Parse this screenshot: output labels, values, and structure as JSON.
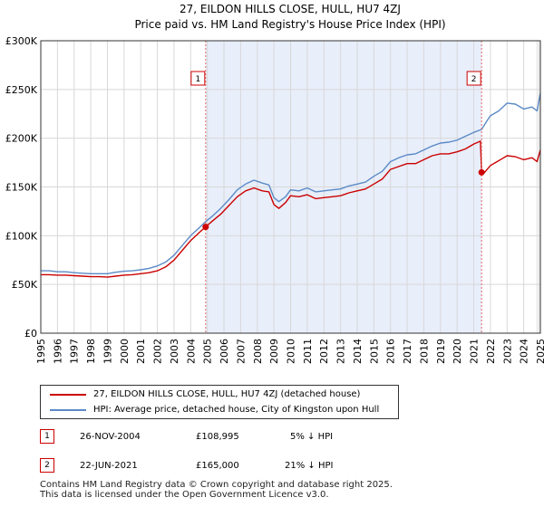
{
  "chart_data": {
    "type": "line",
    "title": "27, EILDON HILLS CLOSE, HULL, HU7 4ZJ",
    "subtitle": "Price paid vs. HM Land Registry's House Price Index (HPI)",
    "x_ticks": [
      "1995",
      "1996",
      "1997",
      "1998",
      "1999",
      "2000",
      "2001",
      "2002",
      "2003",
      "2004",
      "2005",
      "2006",
      "2007",
      "2008",
      "2009",
      "2010",
      "2011",
      "2012",
      "2013",
      "2014",
      "2015",
      "2016",
      "2017",
      "2018",
      "2019",
      "2020",
      "2021",
      "2022",
      "2023",
      "2024",
      "2025"
    ],
    "y_ticks": [
      "£0",
      "£50K",
      "£100K",
      "£150K",
      "£200K",
      "£250K",
      "£300K"
    ],
    "xlim": [
      1995,
      2025
    ],
    "ylim": [
      0,
      300000
    ],
    "grid": true,
    "shaded_period": [
      2004.9,
      2021.47
    ],
    "series": [
      {
        "name": "27, EILDON HILLS CLOSE, HULL, HU7 4ZJ (detached house)",
        "color": "#cc0000",
        "x": [
          1995.0,
          1995.5,
          1996.0,
          1996.5,
          1997.0,
          1997.5,
          1998.0,
          1998.5,
          1999.0,
          1999.5,
          2000.0,
          2000.5,
          2001.0,
          2001.5,
          2002.0,
          2002.5,
          2003.0,
          2003.5,
          2004.0,
          2004.5,
          2004.9,
          2005.3,
          2005.8,
          2006.3,
          2006.8,
          2007.3,
          2007.8,
          2008.3,
          2008.7,
          2009.0,
          2009.3,
          2009.7,
          2010.0,
          2010.5,
          2011.0,
          2011.5,
          2012.0,
          2012.5,
          2013.0,
          2013.5,
          2014.0,
          2014.5,
          2015.0,
          2015.5,
          2016.0,
          2016.5,
          2017.0,
          2017.5,
          2018.0,
          2018.5,
          2019.0,
          2019.5,
          2020.0,
          2020.5,
          2021.0,
          2021.4,
          2021.47,
          2021.6,
          2022.0,
          2022.3,
          2022.7,
          2023.0,
          2023.5,
          2024.0,
          2024.5,
          2024.8,
          2025.0
        ],
        "y": [
          60000,
          60000,
          59500,
          59500,
          59000,
          58500,
          58000,
          58000,
          57500,
          58500,
          59500,
          60000,
          61000,
          62000,
          64000,
          68000,
          75000,
          85000,
          95000,
          103000,
          108995,
          115000,
          122000,
          131000,
          140000,
          146000,
          149000,
          146000,
          145000,
          132000,
          128000,
          134000,
          141000,
          140000,
          142000,
          138000,
          139000,
          140000,
          141000,
          144000,
          146000,
          148000,
          153000,
          158000,
          168000,
          171000,
          174000,
          174000,
          178000,
          182000,
          184000,
          184000,
          186000,
          189000,
          194000,
          197000,
          165000,
          164000,
          172000,
          175000,
          179000,
          182000,
          181000,
          178000,
          180000,
          176000,
          188000
        ]
      },
      {
        "name": "HPI: Average price, detached house, City of Kingston upon Hull",
        "color": "#5b8ac6",
        "x": [
          1995.0,
          1995.5,
          1996.0,
          1996.5,
          1997.0,
          1997.5,
          1998.0,
          1998.5,
          1999.0,
          1999.5,
          2000.0,
          2000.5,
          2001.0,
          2001.5,
          2002.0,
          2002.5,
          2003.0,
          2003.5,
          2004.0,
          2004.5,
          2004.9,
          2005.3,
          2005.8,
          2006.3,
          2006.8,
          2007.3,
          2007.8,
          2008.3,
          2008.7,
          2009.0,
          2009.3,
          2009.7,
          2010.0,
          2010.5,
          2011.0,
          2011.5,
          2012.0,
          2012.5,
          2013.0,
          2013.5,
          2014.0,
          2014.5,
          2015.0,
          2015.5,
          2016.0,
          2016.5,
          2017.0,
          2017.5,
          2018.0,
          2018.5,
          2019.0,
          2019.5,
          2020.0,
          2020.5,
          2021.0,
          2021.47,
          2021.8,
          2022.0,
          2022.5,
          2023.0,
          2023.5,
          2024.0,
          2024.5,
          2024.8,
          2025.0
        ],
        "y": [
          64000,
          64000,
          63000,
          63000,
          62000,
          61500,
          61000,
          61000,
          61000,
          62500,
          63500,
          64000,
          65000,
          66500,
          69000,
          73000,
          80000,
          90000,
          100000,
          108000,
          114500,
          120000,
          128000,
          137000,
          147000,
          153000,
          157000,
          154000,
          152000,
          139000,
          135000,
          140000,
          147000,
          146000,
          149000,
          145000,
          146000,
          147000,
          148000,
          151000,
          153000,
          155000,
          161000,
          166000,
          176000,
          180000,
          183000,
          184000,
          188000,
          192000,
          195000,
          196000,
          198000,
          202000,
          206000,
          209000,
          218000,
          223000,
          228000,
          236000,
          235000,
          230000,
          232000,
          228000,
          246000
        ]
      }
    ],
    "markers": [
      {
        "label": "1",
        "x": 2004.9,
        "y": 108995
      },
      {
        "label": "2",
        "x": 2021.47,
        "y": 165000
      }
    ]
  },
  "legend": {
    "items": [
      {
        "label": "27, EILDON HILLS CLOSE, HULL, HU7 4ZJ (detached house)",
        "color": "#cc0000"
      },
      {
        "label": "HPI: Average price, detached house, City of Kingston upon Hull",
        "color": "#5b8ac6"
      }
    ]
  },
  "sales": [
    {
      "id": "1",
      "date": "26-NOV-2004",
      "price": "£108,995",
      "hpi": "5% ↓ HPI"
    },
    {
      "id": "2",
      "date": "22-JUN-2021",
      "price": "£165,000",
      "hpi": "21% ↓ HPI"
    }
  ],
  "footer": {
    "line1": "Contains HM Land Registry data © Crown copyright and database right 2025.",
    "line2": "This data is licensed under the Open Government Licence v3.0."
  }
}
